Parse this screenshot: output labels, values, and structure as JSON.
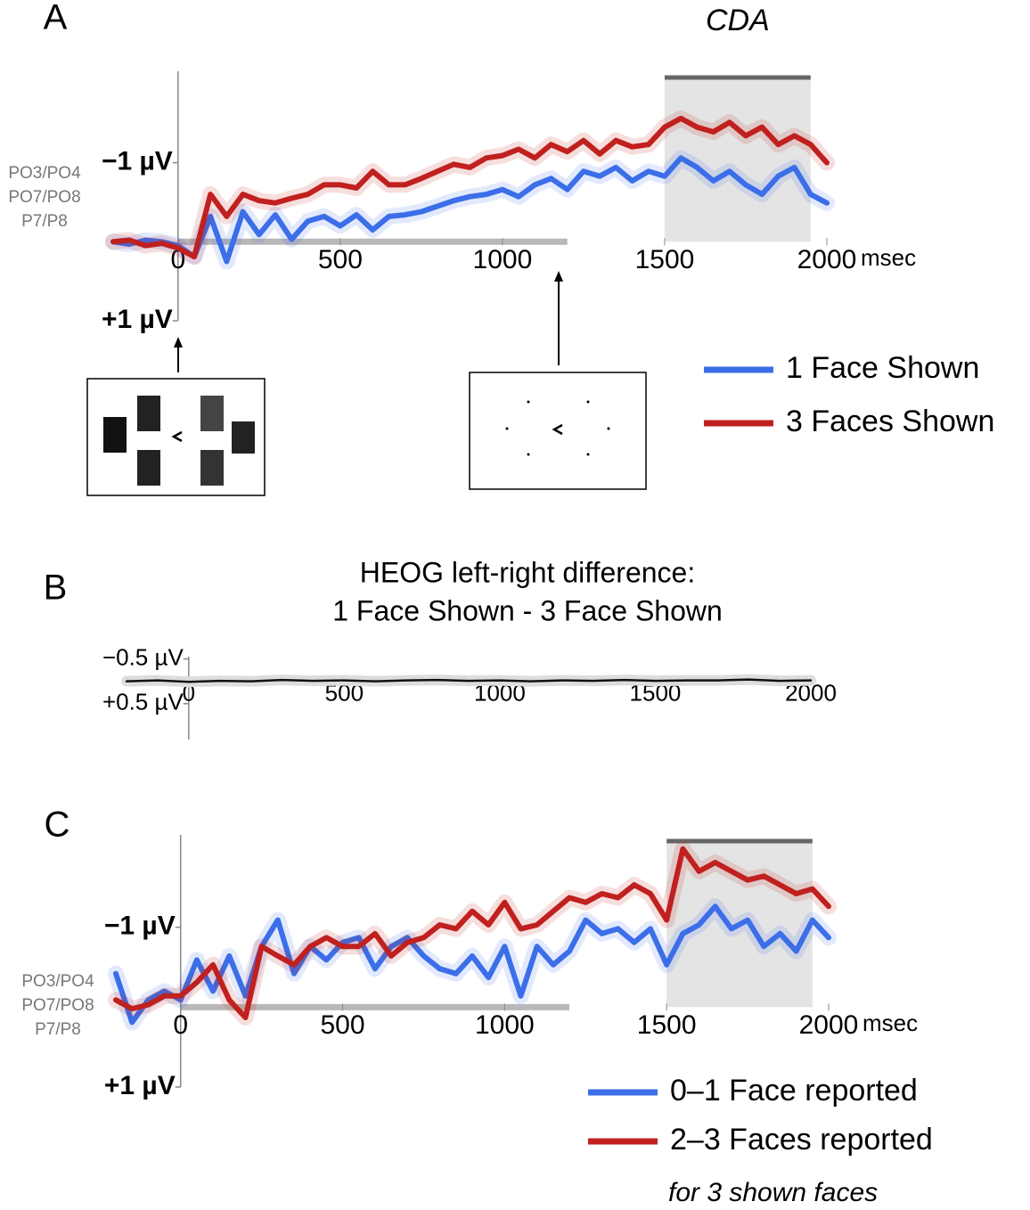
{
  "chart_data": [
    {
      "type": "line",
      "panel": "A",
      "annotation": "CDA",
      "channels": [
        "PO3/PO4",
        "PO7/PO8",
        "P7/P8"
      ],
      "xlabel": "msec",
      "x": [
        -200,
        -150,
        -100,
        -50,
        0,
        50,
        100,
        150,
        200,
        250,
        300,
        350,
        400,
        450,
        500,
        550,
        600,
        650,
        700,
        750,
        800,
        850,
        900,
        950,
        1000,
        1050,
        1100,
        1150,
        1200,
        1250,
        1300,
        1350,
        1400,
        1450,
        1500,
        1550,
        1600,
        1650,
        1700,
        1750,
        1800,
        1850,
        1900,
        1950,
        2000
      ],
      "series": [
        {
          "name": "1 Face Shown",
          "color": "#3b6ee8",
          "values": [
            0,
            0.03,
            -0.02,
            0,
            0.05,
            0.19,
            -0.32,
            0.25,
            -0.38,
            -0.09,
            -0.34,
            -0.03,
            -0.26,
            -0.32,
            -0.2,
            -0.34,
            -0.15,
            -0.32,
            -0.34,
            -0.38,
            -0.45,
            -0.52,
            -0.57,
            -0.6,
            -0.66,
            -0.57,
            -0.72,
            -0.8,
            -0.66,
            -0.89,
            -0.83,
            -0.94,
            -0.77,
            -0.89,
            -0.83,
            -1.06,
            -0.94,
            -0.77,
            -0.89,
            -0.72,
            -0.6,
            -0.83,
            -0.94,
            -0.6,
            -0.49
          ]
        },
        {
          "name": "3 Faces Shown",
          "color": "#c0201e",
          "values": [
            0,
            -0.02,
            0.05,
            0.02,
            0.08,
            0.19,
            -0.6,
            -0.32,
            -0.6,
            -0.52,
            -0.49,
            -0.55,
            -0.6,
            -0.72,
            -0.72,
            -0.68,
            -0.89,
            -0.72,
            -0.72,
            -0.8,
            -0.89,
            -0.98,
            -0.94,
            -1.06,
            -1.09,
            -1.17,
            -1.06,
            -1.23,
            -1.14,
            -1.28,
            -1.11,
            -1.28,
            -1.2,
            -1.23,
            -1.45,
            -1.56,
            -1.45,
            -1.39,
            -1.51,
            -1.34,
            -1.45,
            -1.23,
            -1.34,
            -1.23,
            -1.0
          ]
        }
      ],
      "xlim": [
        -200,
        2000
      ],
      "xticks": [
        0,
        500,
        1000,
        1500,
        2000
      ],
      "ylim": [
        1,
        -2.1
      ],
      "yticks": [
        {
          "value": -1,
          "label": "−1 µV"
        },
        {
          "value": 1,
          "label": "+1 µV"
        }
      ],
      "highlight": [
        1500,
        1950
      ],
      "time_bar": [
        0,
        1200
      ]
    },
    {
      "type": "line",
      "panel": "B",
      "title": [
        "HEOG left-right difference:",
        "1 Face Shown - 3 Face Shown"
      ],
      "x": [
        -200,
        -100,
        0,
        100,
        200,
        300,
        400,
        500,
        600,
        700,
        800,
        900,
        1000,
        1100,
        1200,
        1300,
        1400,
        1500,
        1600,
        1700,
        1800,
        1900,
        2000
      ],
      "series": [
        {
          "color": "#111111",
          "values": [
            0,
            -0.02,
            0.01,
            -0.01,
            0,
            -0.03,
            -0.01,
            -0.02,
            0,
            -0.02,
            -0.03,
            -0.01,
            -0.02,
            0,
            -0.02,
            -0.01,
            -0.03,
            -0.01,
            -0.02,
            -0.02,
            -0.04,
            -0.01,
            -0.02
          ]
        }
      ],
      "xlim": [
        -200,
        2000
      ],
      "xticks": [
        0,
        500,
        1000,
        1500,
        2000
      ],
      "ylim": [
        1.3,
        -0.55
      ],
      "yticks": [
        {
          "value": -0.5,
          "label": "−0.5 µV"
        },
        {
          "value": 0.5,
          "label": "+0.5 µV"
        }
      ]
    },
    {
      "type": "line",
      "panel": "C",
      "channels": [
        "PO3/PO4",
        "PO7/PO8",
        "P7/P8"
      ],
      "xlabel": "msec",
      "note": "for 3 shown faces",
      "x": [
        -200,
        -150,
        -100,
        -50,
        0,
        50,
        100,
        150,
        200,
        250,
        300,
        350,
        400,
        450,
        500,
        550,
        600,
        650,
        700,
        750,
        800,
        850,
        900,
        950,
        1000,
        1050,
        1100,
        1150,
        1200,
        1250,
        1300,
        1350,
        1400,
        1450,
        1500,
        1550,
        1600,
        1650,
        1700,
        1750,
        1800,
        1850,
        1900,
        1950,
        2000
      ],
      "series": [
        {
          "name": "0–1 Face reported",
          "color": "#3b6ee8",
          "values": [
            -0.42,
            0.19,
            -0.09,
            -0.2,
            -0.09,
            -0.59,
            -0.2,
            -0.64,
            -0.14,
            -0.76,
            -1.09,
            -0.42,
            -0.76,
            -0.59,
            -0.81,
            -0.87,
            -0.48,
            -0.76,
            -0.87,
            -0.64,
            -0.48,
            -0.42,
            -0.64,
            -0.37,
            -0.76,
            -0.14,
            -0.76,
            -0.53,
            -0.7,
            -1.09,
            -0.92,
            -0.98,
            -0.81,
            -0.98,
            -0.53,
            -0.92,
            -1.03,
            -1.26,
            -0.98,
            -1.09,
            -0.76,
            -0.92,
            -0.7,
            -1.09,
            -0.87
          ]
        },
        {
          "name": "2–3 Faces reported",
          "color": "#c0201e",
          "values": [
            -0.09,
            0.02,
            -0.03,
            -0.14,
            -0.14,
            -0.31,
            -0.53,
            -0.09,
            0.13,
            -0.76,
            -0.64,
            -0.53,
            -0.76,
            -0.87,
            -0.76,
            -0.76,
            -0.92,
            -0.64,
            -0.81,
            -0.87,
            -1.03,
            -0.98,
            -1.2,
            -1.03,
            -1.31,
            -0.98,
            -1.03,
            -1.2,
            -1.37,
            -1.31,
            -1.42,
            -1.37,
            -1.53,
            -1.42,
            -1.09,
            -1.98,
            -1.7,
            -1.81,
            -1.7,
            -1.59,
            -1.64,
            -1.53,
            -1.42,
            -1.48,
            -1.26
          ]
        }
      ],
      "xlim": [
        -200,
        2000
      ],
      "xticks": [
        0,
        500,
        1000,
        1500,
        2000
      ],
      "ylim": [
        1,
        -2.1
      ],
      "yticks": [
        {
          "value": -1,
          "label": "−1 µV"
        },
        {
          "value": 1,
          "label": "+1 µV"
        }
      ],
      "highlight": [
        1500,
        1950
      ],
      "time_bar": [
        0,
        1200
      ]
    }
  ]
}
